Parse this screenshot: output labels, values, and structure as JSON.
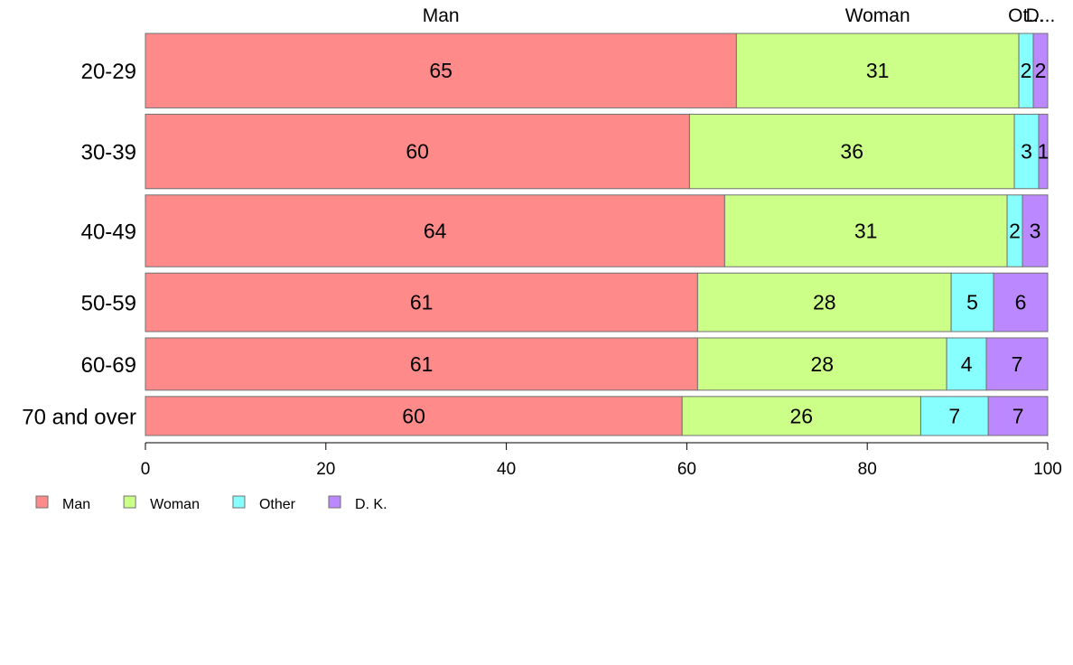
{
  "chart_data": {
    "type": "bar",
    "orientation": "horizontal",
    "stacked": true,
    "title": "",
    "xlabel": "",
    "ylabel": "",
    "xlim": [
      0,
      100
    ],
    "x_ticks": [
      "0",
      "20",
      "40",
      "60",
      "80",
      "100"
    ],
    "grid": false,
    "legend_position": "bottom-left",
    "top_labels": [
      "Man",
      "Woman",
      "Ot...",
      "D..."
    ],
    "categories": [
      "20-29",
      "30-39",
      "40-49",
      "50-59",
      "60-69",
      "70 and over"
    ],
    "row_weights": [
      84,
      84,
      81,
      66,
      59,
      44
    ],
    "series": [
      {
        "name": "Man",
        "color": "#FF8A8A",
        "values": [
          65.5,
          60.3,
          64.2,
          61.2,
          61.2,
          59.6
        ]
      },
      {
        "name": "Woman",
        "color": "#CCFF88",
        "values": [
          31.3,
          36.0,
          31.3,
          28.1,
          27.6,
          26.5
        ]
      },
      {
        "name": "Other",
        "color": "#88FFFF",
        "values": [
          1.6,
          2.7,
          1.7,
          4.7,
          4.4,
          7.5
        ]
      },
      {
        "name": "D. K.",
        "color": "#BB88FF",
        "values": [
          1.6,
          1.0,
          2.8,
          6.0,
          6.8,
          6.6
        ]
      }
    ],
    "data_labels": [
      [
        "65",
        "31",
        "2",
        "2"
      ],
      [
        "60",
        "36",
        "3",
        "1"
      ],
      [
        "64",
        "31",
        "2",
        "3"
      ],
      [
        "61",
        "28",
        "5",
        "6"
      ],
      [
        "61",
        "28",
        "4",
        "7"
      ],
      [
        "60",
        "26",
        "7",
        "7"
      ]
    ],
    "legend": [
      "Man",
      "Woman",
      "Other",
      "D. K."
    ]
  }
}
